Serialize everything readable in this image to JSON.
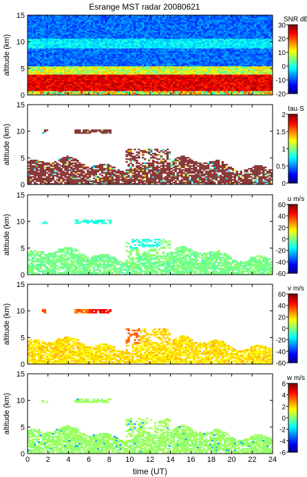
{
  "figure": {
    "title": "Esrange MST radar 20080621",
    "xlabel": "time (UT)"
  },
  "chart_data": [
    {
      "type": "heatmap",
      "quantity": "SNR",
      "ylabel": "altitude (km)",
      "xlim": [
        0,
        24
      ],
      "ylim": [
        0,
        15
      ],
      "xticks": [
        "0",
        "2",
        "4",
        "6",
        "8",
        "10",
        "12",
        "14",
        "16",
        "18",
        "20",
        "22",
        "24"
      ],
      "yticks": [
        "0",
        "5",
        "10",
        "15"
      ],
      "colorbar": {
        "label": "SNR dB",
        "range": [
          -20,
          30
        ],
        "ticks": [
          "-20",
          "-10",
          "0",
          "10",
          "20",
          "30"
        ]
      }
    },
    {
      "type": "heatmap",
      "quantity": "tau",
      "ylabel": "altitude (km)",
      "xlim": [
        0,
        24
      ],
      "ylim": [
        0,
        15
      ],
      "yticks": [
        "0",
        "5",
        "10",
        "15"
      ],
      "colorbar": {
        "label": "tau S",
        "range": [
          0,
          2
        ],
        "ticks": [
          "0",
          "0.5",
          "1",
          "1.5",
          "2"
        ]
      }
    },
    {
      "type": "heatmap",
      "quantity": "u",
      "ylabel": "altitude (km)",
      "xlim": [
        0,
        24
      ],
      "ylim": [
        0,
        15
      ],
      "yticks": [
        "0",
        "5",
        "10",
        "15"
      ],
      "colorbar": {
        "label": "u m/s",
        "range": [
          -60,
          60
        ],
        "ticks": [
          "-60",
          "-40",
          "-20",
          "0",
          "20",
          "40",
          "60"
        ]
      }
    },
    {
      "type": "heatmap",
      "quantity": "v",
      "ylabel": "altitude (km)",
      "xlim": [
        0,
        24
      ],
      "ylim": [
        0,
        15
      ],
      "yticks": [
        "0",
        "5",
        "10",
        "15"
      ],
      "colorbar": {
        "label": "v m/s",
        "range": [
          -60,
          60
        ],
        "ticks": [
          "-60",
          "-40",
          "-20",
          "0",
          "20",
          "40",
          "60"
        ]
      }
    },
    {
      "type": "heatmap",
      "quantity": "w",
      "ylabel": "altitude (km)",
      "xlim": [
        0,
        24
      ],
      "ylim": [
        0,
        15
      ],
      "yticks": [
        "0",
        "5",
        "10",
        "15"
      ],
      "colorbar": {
        "label": "w m/s",
        "range": [
          -6,
          6
        ],
        "ticks": [
          "-6",
          "-4",
          "-2",
          "0",
          "2",
          "4",
          "6"
        ]
      }
    }
  ]
}
